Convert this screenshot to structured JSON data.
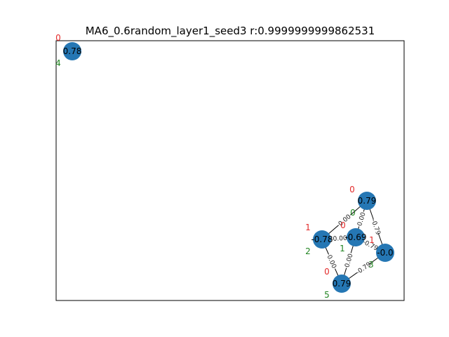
{
  "title": "MA6_0.6random_layer1_seed3  r:0.9999999999862531",
  "colors": {
    "node": "#2577b4",
    "edge": "#000000",
    "red_label": "#e32a2a",
    "green_label": "#218421",
    "frame": "#000000"
  },
  "nodes": [
    {
      "id": "4",
      "value": "0.78",
      "red_label": "0",
      "green_label": "4"
    },
    {
      "id": "0",
      "value": "0.79",
      "red_label": "0",
      "green_label": "0"
    },
    {
      "id": "2",
      "value": "-0.78",
      "red_label": "1",
      "green_label": "2"
    },
    {
      "id": "1",
      "value": "-0.69",
      "red_label": "0",
      "green_label": "1"
    },
    {
      "id": "3",
      "value": "-0.0",
      "red_label": "1",
      "green_label": "3"
    },
    {
      "id": "5",
      "value": "0.79",
      "red_label": "0",
      "green_label": "5"
    }
  ],
  "edges": [
    {
      "from": "0",
      "to": "2",
      "label": "0.00"
    },
    {
      "from": "0",
      "to": "1",
      "label": "0.00"
    },
    {
      "from": "0",
      "to": "3",
      "label": "-0.79"
    },
    {
      "from": "2",
      "to": "1",
      "label": "-0.00"
    },
    {
      "from": "2",
      "to": "5",
      "label": "0.00"
    },
    {
      "from": "1",
      "to": "3",
      "label": "-0.79"
    },
    {
      "from": "1",
      "to": "5",
      "label": "0.00"
    },
    {
      "from": "3",
      "to": "5",
      "label": "-0.79"
    }
  ]
}
